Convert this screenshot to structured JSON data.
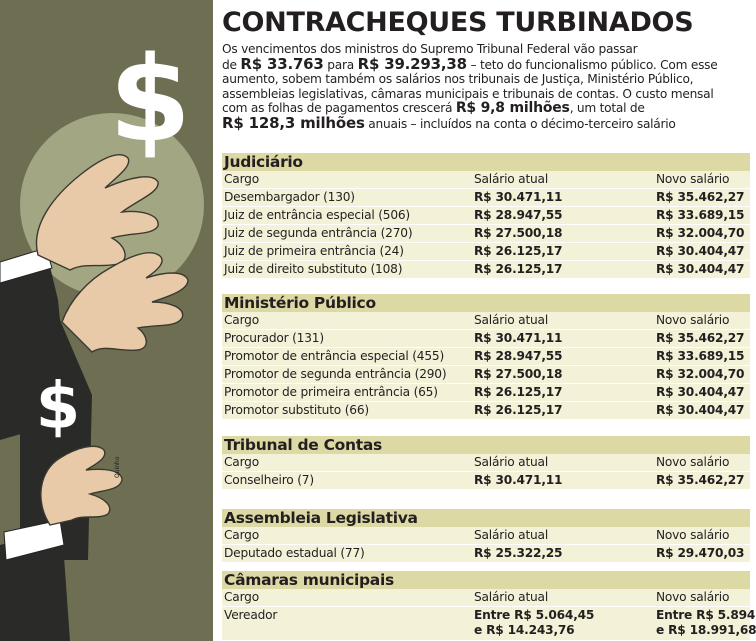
{
  "headline": "CONTRACHEQUES TURBINADOS",
  "intro": {
    "l1": "Os vencimentos dos ministros do Supremo Tribunal Federal vão passar",
    "l2_a": "de ",
    "l2_b": "R$ 33.763",
    "l2_c": " para ",
    "l2_d": "R$ 39.293,38",
    "l2_e": " – teto do funcionalismo público. Com esse",
    "l3": "aumento, sobem também os salários nos tribunais de Justiça, Ministério Público,",
    "l4": "assembleias legislativas, câmaras municipais e tribunais de contas. O custo mensal",
    "l5_a": "com as folhas de pagamentos crescerá ",
    "l5_b": "R$ 9,8 milhões",
    "l5_c": ", um total de",
    "l6_a": "R$ 128,3 milhões",
    "l6_b": " anuais – incluídos na conta o décimo-terceiro salário"
  },
  "columns": {
    "cargo": "Cargo",
    "atual": "Salário atual",
    "novo": "Novo salário"
  },
  "sections": [
    {
      "title": "Judiciário",
      "rows": [
        {
          "cargo": "Desembargador (130)",
          "atual": "R$ 30.471,11",
          "novo": "R$ 35.462,27"
        },
        {
          "cargo": "Juiz de entrância especial (506)",
          "atual": "R$ 28.947,55",
          "novo": "R$ 33.689,15"
        },
        {
          "cargo": "Juiz de segunda entrância (270)",
          "atual": "R$ 27.500,18",
          "novo": "R$ 32.004,70"
        },
        {
          "cargo": "Juiz de primeira entrância (24)",
          "atual": "R$ 26.125,17",
          "novo": "R$ 30.404,47"
        },
        {
          "cargo": "Juiz de direito substituto (108)",
          "atual": "R$ 26.125,17",
          "novo": "R$ 30.404,47"
        }
      ]
    },
    {
      "title": "Ministério Público",
      "rows": [
        {
          "cargo": "Procurador (131)",
          "atual": "R$ 30.471,11",
          "novo": "R$ 35.462,27"
        },
        {
          "cargo": "Promotor de entrância especial (455)",
          "atual": "R$ 28.947,55",
          "novo": "R$ 33.689,15"
        },
        {
          "cargo": "Promotor de segunda entrância (290)",
          "atual": "R$ 27.500,18",
          "novo": "R$ 32.004,70"
        },
        {
          "cargo": "Promotor de primeira entrância (65)",
          "atual": "R$ 26.125,17",
          "novo": "R$ 30.404,47"
        },
        {
          "cargo": "Promotor substituto (66)",
          "atual": "R$ 26.125,17",
          "novo": "R$ 30.404,47"
        }
      ]
    },
    {
      "title": "Tribunal de Contas",
      "rows": [
        {
          "cargo": "Conselheiro (7)",
          "atual": "R$ 30.471,11",
          "novo": "R$ 35.462,27"
        }
      ]
    },
    {
      "title": "Assembleia Legislativa",
      "rows": [
        {
          "cargo": "Deputado estadual (77)",
          "atual": "R$ 25.322,25",
          "novo": "R$ 29.470,03"
        }
      ]
    },
    {
      "title": "Câmaras municipais",
      "rows": [
        {
          "cargo": "Vereador",
          "atual_1": "Entre R$ 5.064,45",
          "atual_2": "e R$ 14.243,76",
          "novo_1": "Entre R$ 5.894",
          "novo_2": "e R$ 18.991,68"
        }
      ]
    }
  ],
  "illustration": {
    "symbol": "$",
    "signature": "Quinho",
    "colors": {
      "background": "#6e6f52",
      "coin": "#a3a682",
      "sleeve": "#2a2a28",
      "skin": "#e8c9a8",
      "cuff": "#ffffff"
    }
  },
  "colors": {
    "section_header": "#dcd9a5",
    "row": "#f3f1d8",
    "text": "#231f20"
  }
}
